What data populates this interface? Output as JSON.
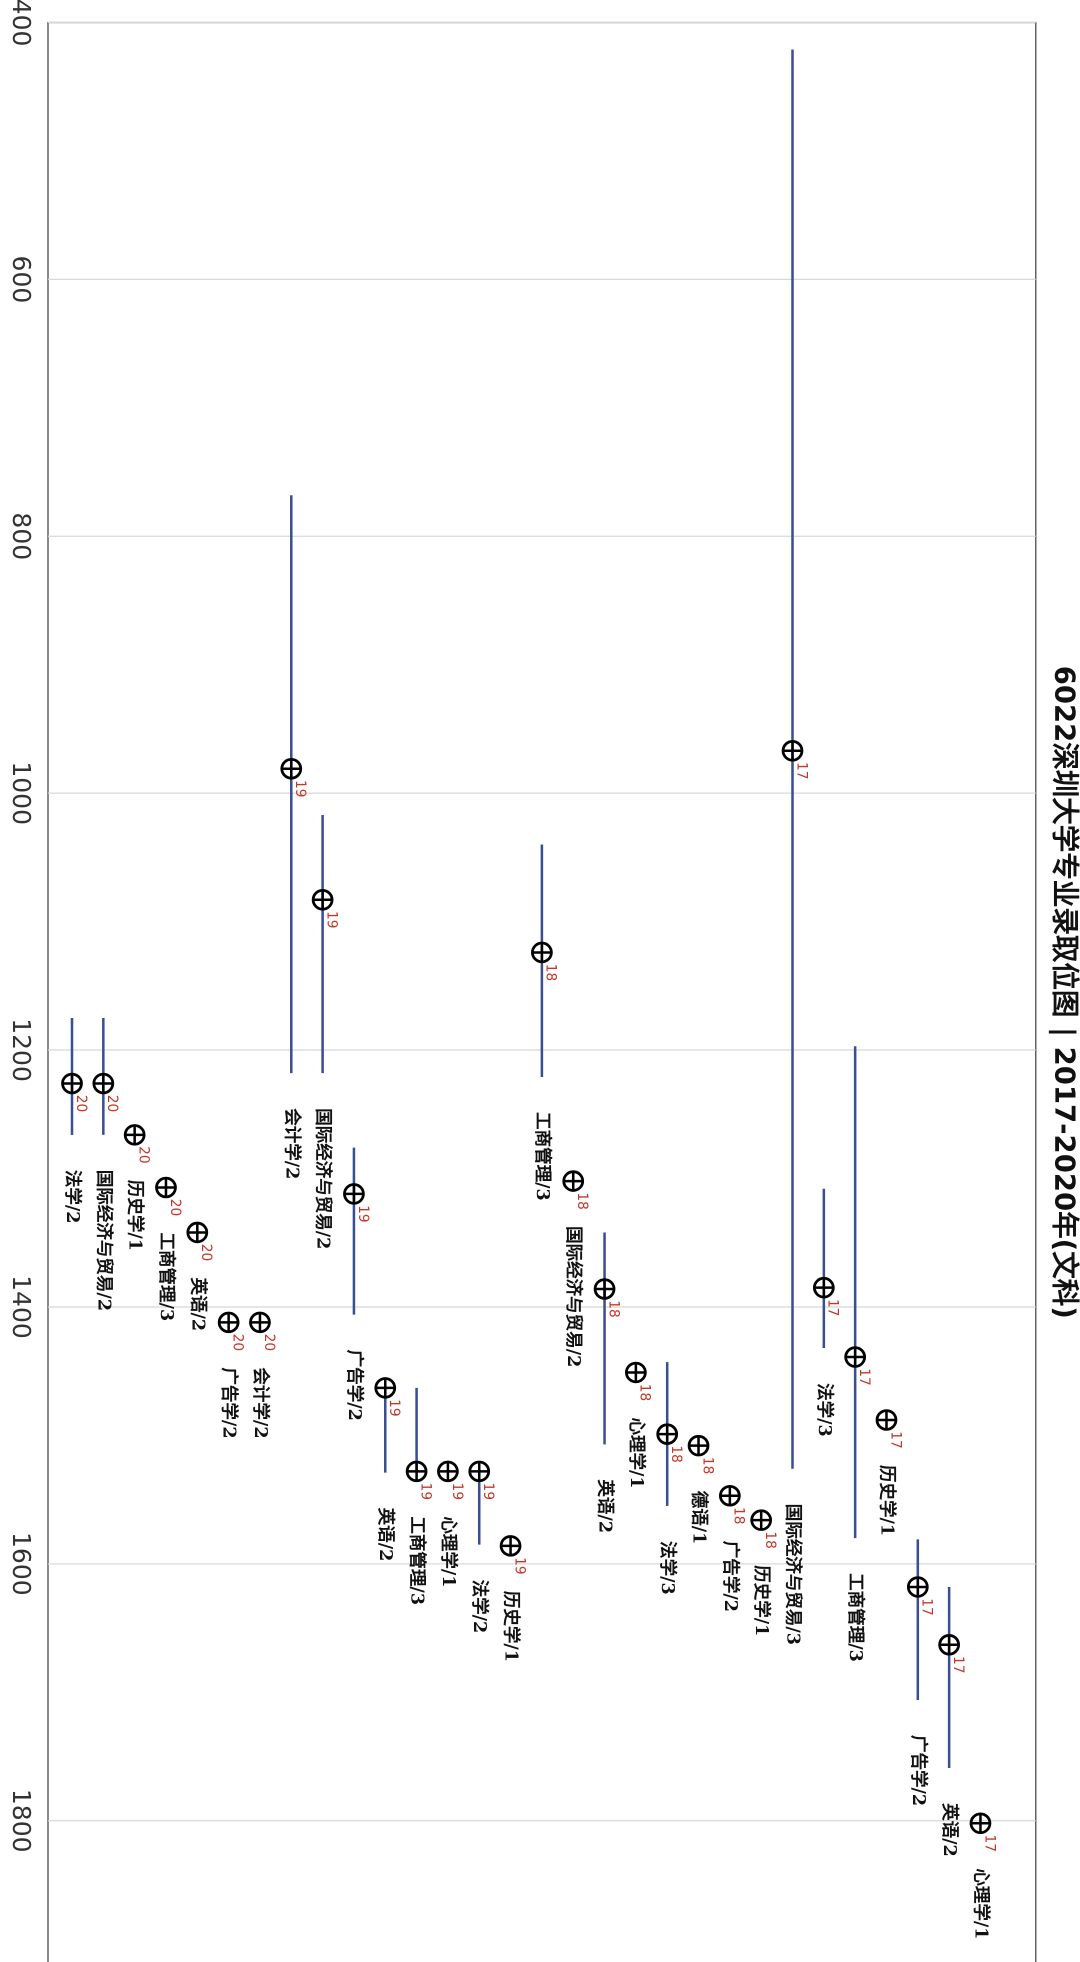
{
  "chart_data": {
    "type": "range",
    "title": "6022深圳大学专业录取位图 | 2017-2020年(文科)",
    "categories": [
      "法学/2",
      "国际经济与贸易/2",
      "历史学/1",
      "工商管理/3",
      "英语/2",
      "广告学/2",
      "会计学/2",
      "会计学/2",
      "国际经济与贸易/2",
      "广告学/2",
      "英语/2",
      "工商管理/3",
      "心理学/1",
      "法学/2",
      "历史学/1",
      "工商管理/3",
      "国际经济与贸易/2",
      "英语/2",
      "心理学/1",
      "法学/3",
      "德语/1",
      "广告学/2",
      "历史学/1",
      "国际经济与贸易/3",
      "法学/3",
      "工商管理/3",
      "历史学/1",
      "广告学/2",
      "英语/2",
      "心理学/1"
    ],
    "year_labels": [
      "20",
      "20",
      "20",
      "20",
      "20",
      "20",
      "20",
      "19",
      "19",
      "19",
      "19",
      "19",
      "19",
      "19",
      "19",
      "18",
      "18",
      "18",
      "18",
      "18",
      "18",
      "18",
      "18",
      "17",
      "17",
      "17",
      "17",
      "17",
      "17",
      "17"
    ],
    "values": [
      1226,
      1226,
      1266,
      1307,
      1342,
      1412,
      1412,
      981,
      1083,
      1312,
      1463,
      1528,
      1528,
      1528,
      1586,
      1124,
      1302,
      1386,
      1451,
      1499,
      1508,
      1547,
      1566,
      967,
      1385,
      1439,
      1488,
      1618,
      1663,
      1802
    ],
    "low": [
      1175,
      1175,
      null,
      null,
      null,
      null,
      null,
      768,
      1017,
      1276,
      1461,
      1463,
      null,
      1528,
      null,
      1040,
      null,
      1342,
      null,
      1443,
      null,
      null,
      null,
      421,
      1308,
      1197,
      null,
      1581,
      1618,
      null
    ],
    "high": [
      1266,
      1266,
      null,
      null,
      null,
      null,
      null,
      1218,
      1218,
      1406,
      1529,
      1528,
      null,
      1585,
      null,
      1221,
      null,
      1507,
      null,
      1555,
      null,
      null,
      null,
      1526,
      1432,
      1580,
      null,
      1706,
      1759,
      null
    ],
    "ylim": [
      400,
      1910
    ],
    "yticks": [
      400,
      600,
      800,
      1000,
      1200,
      1400,
      1600,
      1800
    ],
    "grid": true,
    "line_color": "#3a4e92",
    "year_color": "#c0392b"
  }
}
